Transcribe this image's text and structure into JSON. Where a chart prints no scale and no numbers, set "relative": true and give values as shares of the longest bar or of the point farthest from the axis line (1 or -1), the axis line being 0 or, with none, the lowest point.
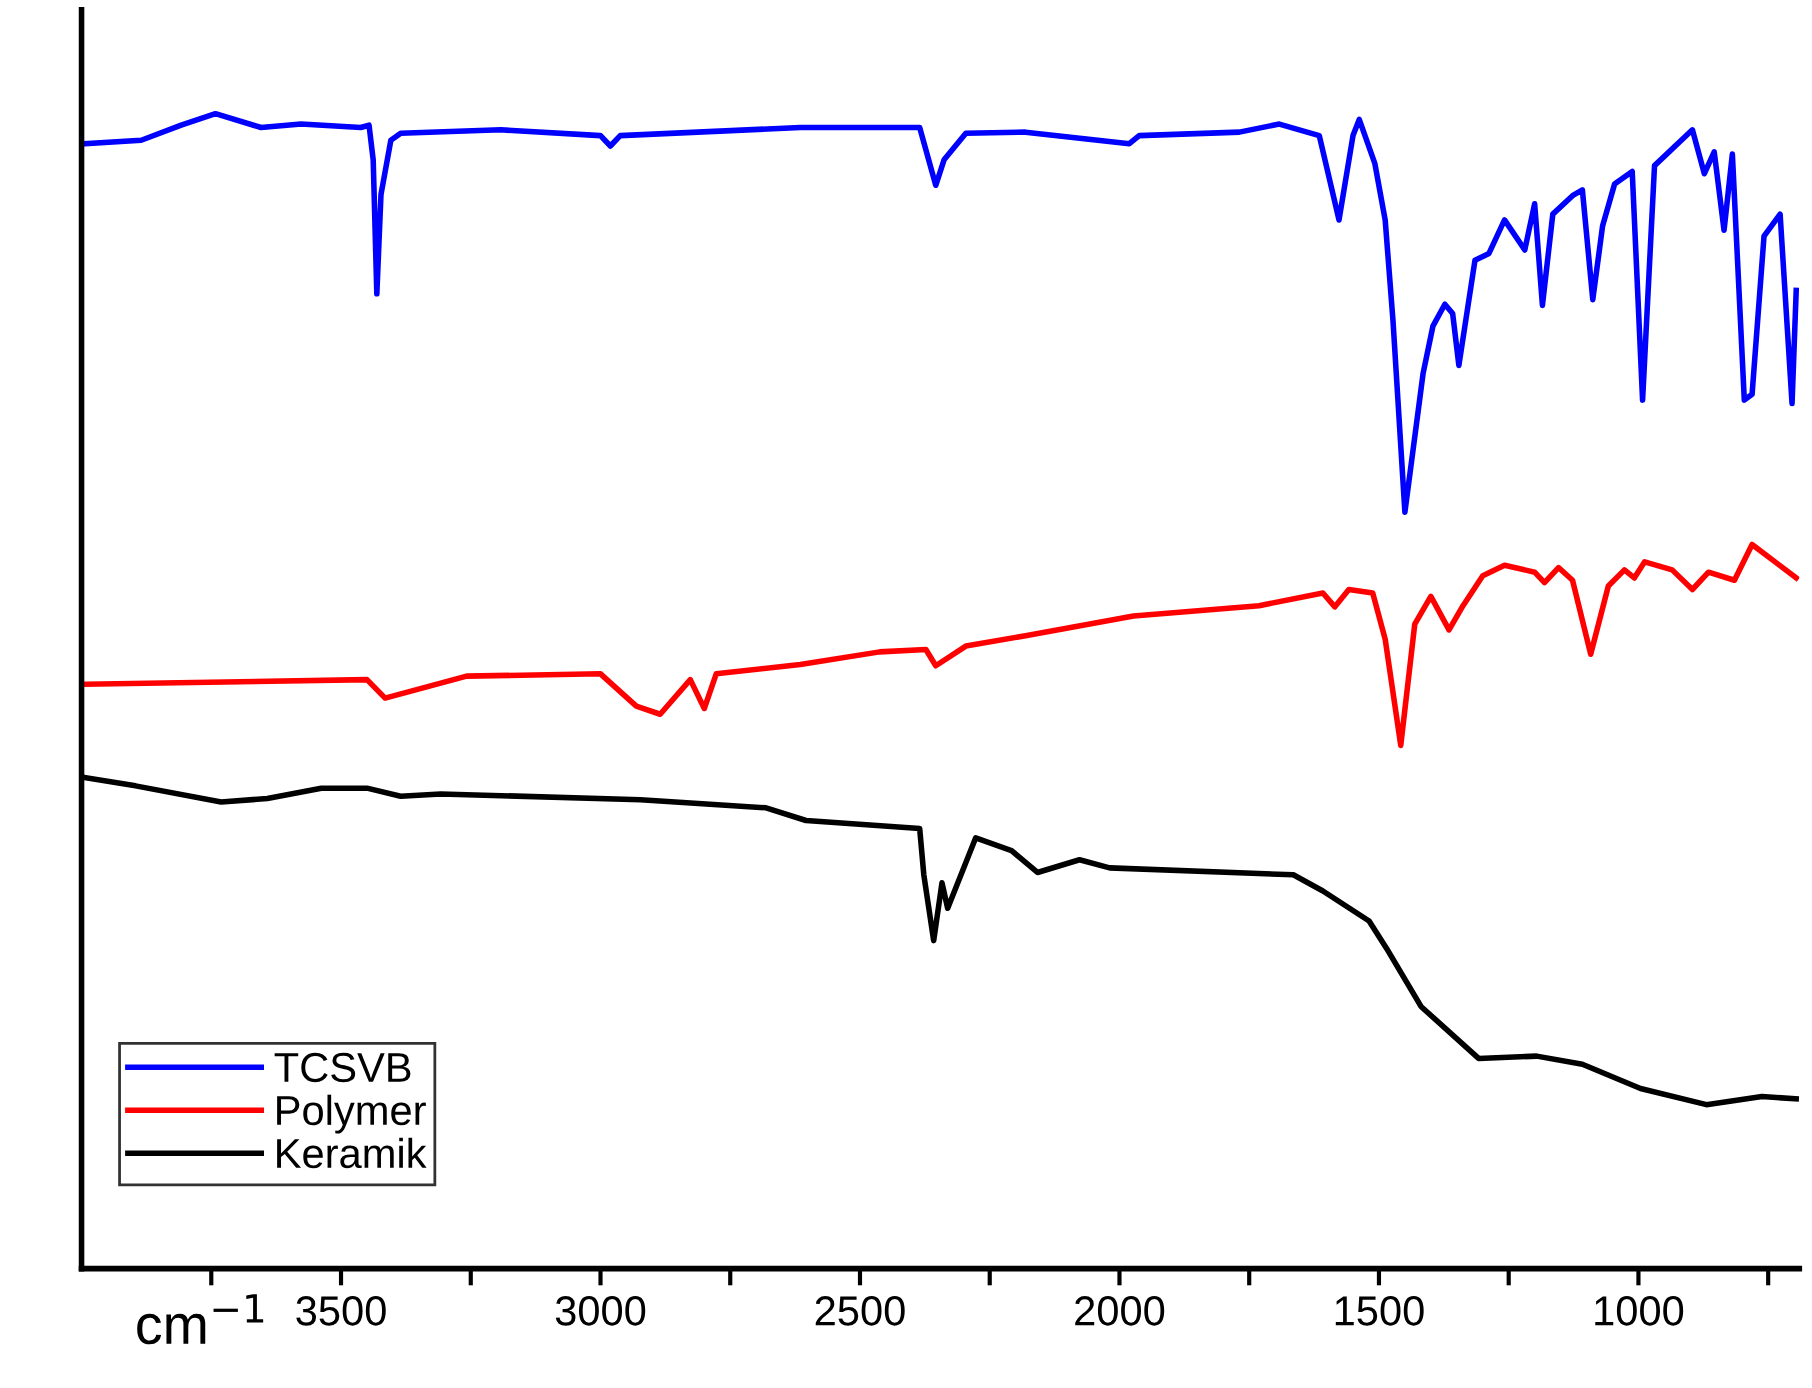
{
  "chart_data": {
    "type": "line",
    "relative": true,
    "xlabel": "cm$^{−1}$",
    "xlim": [
      4000,
      690
    ],
    "xticks": [
      {
        "value": 3750,
        "label": null
      },
      3500,
      {
        "value": 3250,
        "label": null
      },
      3000,
      {
        "value": 2750,
        "label": null
      },
      2500,
      {
        "value": 2250,
        "label": null
      },
      2000,
      {
        "value": 1750,
        "label": null
      },
      1500,
      {
        "value": 1250,
        "label": null
      },
      1000,
      {
        "value": 750,
        "label": null
      }
    ],
    "tick_labels": "x",
    "grid": false,
    "legend": "bottom left",
    "marker": "none",
    "line_style": "solid",
    "series": [
      {
        "name": "TCSVB",
        "color": "#0000ff",
        "x": [
          3996,
          3885,
          3808,
          3742,
          3654,
          3577,
          3462,
          3446,
          3438,
          3431,
          3423,
          3404,
          3385,
          3192,
          3000,
          2981,
          2962,
          2615,
          2462,
          2385,
          2354,
          2338,
          2296,
          2181,
          1981,
          1962,
          1769,
          1692,
          1615,
          1577,
          1550,
          1538,
          1508,
          1488,
          1473,
          1450,
          1415,
          1396,
          1373,
          1358,
          1346,
          1315,
          1288,
          1258,
          1219,
          1200,
          1185,
          1165,
          1127,
          1108,
          1088,
          1069,
          1046,
          1012,
          992,
          969,
          896,
          873,
          854,
          835,
          819,
          796,
          781,
          758,
          727,
          704,
          696
        ],
        "values": [
          0.974,
          0.977,
          0.99,
          1.0,
          0.988,
          0.991,
          0.988,
          0.99,
          0.96,
          0.844,
          0.93,
          0.977,
          0.983,
          0.986,
          0.981,
          0.972,
          0.981,
          0.988,
          0.988,
          0.988,
          0.938,
          0.96,
          0.983,
          0.984,
          0.974,
          0.981,
          0.984,
          0.991,
          0.981,
          0.908,
          0.981,
          0.995,
          0.957,
          0.908,
          0.821,
          0.655,
          0.775,
          0.816,
          0.835,
          0.827,
          0.782,
          0.873,
          0.879,
          0.908,
          0.882,
          0.922,
          0.834,
          0.913,
          0.929,
          0.934,
          0.839,
          0.903,
          0.939,
          0.95,
          0.752,
          0.955,
          0.986,
          0.948,
          0.967,
          0.899,
          0.965,
          0.752,
          0.757,
          0.894,
          0.913,
          0.749,
          0.847
        ]
      },
      {
        "name": "Polymer",
        "color": "#ff0000",
        "x": [
          3992,
          3450,
          3415,
          3258,
          3000,
          2931,
          2885,
          2827,
          2800,
          2777,
          2615,
          2462,
          2373,
          2354,
          2296,
          2181,
          1973,
          1731,
          1608,
          1585,
          1558,
          1512,
          1488,
          1458,
          1431,
          1400,
          1365,
          1338,
          1300,
          1258,
          1200,
          1181,
          1154,
          1127,
          1092,
          1058,
          1027,
          1008,
          988,
          935,
          896,
          865,
          815,
          781,
          731,
          696
        ],
        "values": [
          0.506,
          0.51,
          0.494,
          0.513,
          0.515,
          0.487,
          0.48,
          0.51,
          0.485,
          0.515,
          0.523,
          0.534,
          0.536,
          0.522,
          0.539,
          0.548,
          0.565,
          0.574,
          0.585,
          0.573,
          0.588,
          0.585,
          0.545,
          0.453,
          0.558,
          0.582,
          0.553,
          0.574,
          0.6,
          0.609,
          0.603,
          0.594,
          0.607,
          0.596,
          0.532,
          0.591,
          0.605,
          0.598,
          0.612,
          0.605,
          0.588,
          0.603,
          0.596,
          0.627,
          0.61,
          0.598
        ]
      },
      {
        "name": "Keramik",
        "color": "#000000",
        "x": [
          3992,
          3896,
          3731,
          3642,
          3538,
          3450,
          3385,
          3308,
          2923,
          2681,
          2604,
          2385,
          2377,
          2358,
          2342,
          2331,
          2277,
          2208,
          2158,
          2077,
          2019,
          1665,
          1608,
          1519,
          1485,
          1419,
          1308,
          1196,
          1108,
          996,
          869,
          762,
          696
        ],
        "values": [
          0.425,
          0.418,
          0.404,
          0.407,
          0.416,
          0.416,
          0.409,
          0.411,
          0.406,
          0.399,
          0.388,
          0.381,
          0.341,
          0.284,
          0.334,
          0.312,
          0.373,
          0.362,
          0.343,
          0.354,
          0.347,
          0.341,
          0.327,
          0.301,
          0.277,
          0.227,
          0.182,
          0.184,
          0.177,
          0.156,
          0.142,
          0.149,
          0.147
        ]
      }
    ]
  }
}
